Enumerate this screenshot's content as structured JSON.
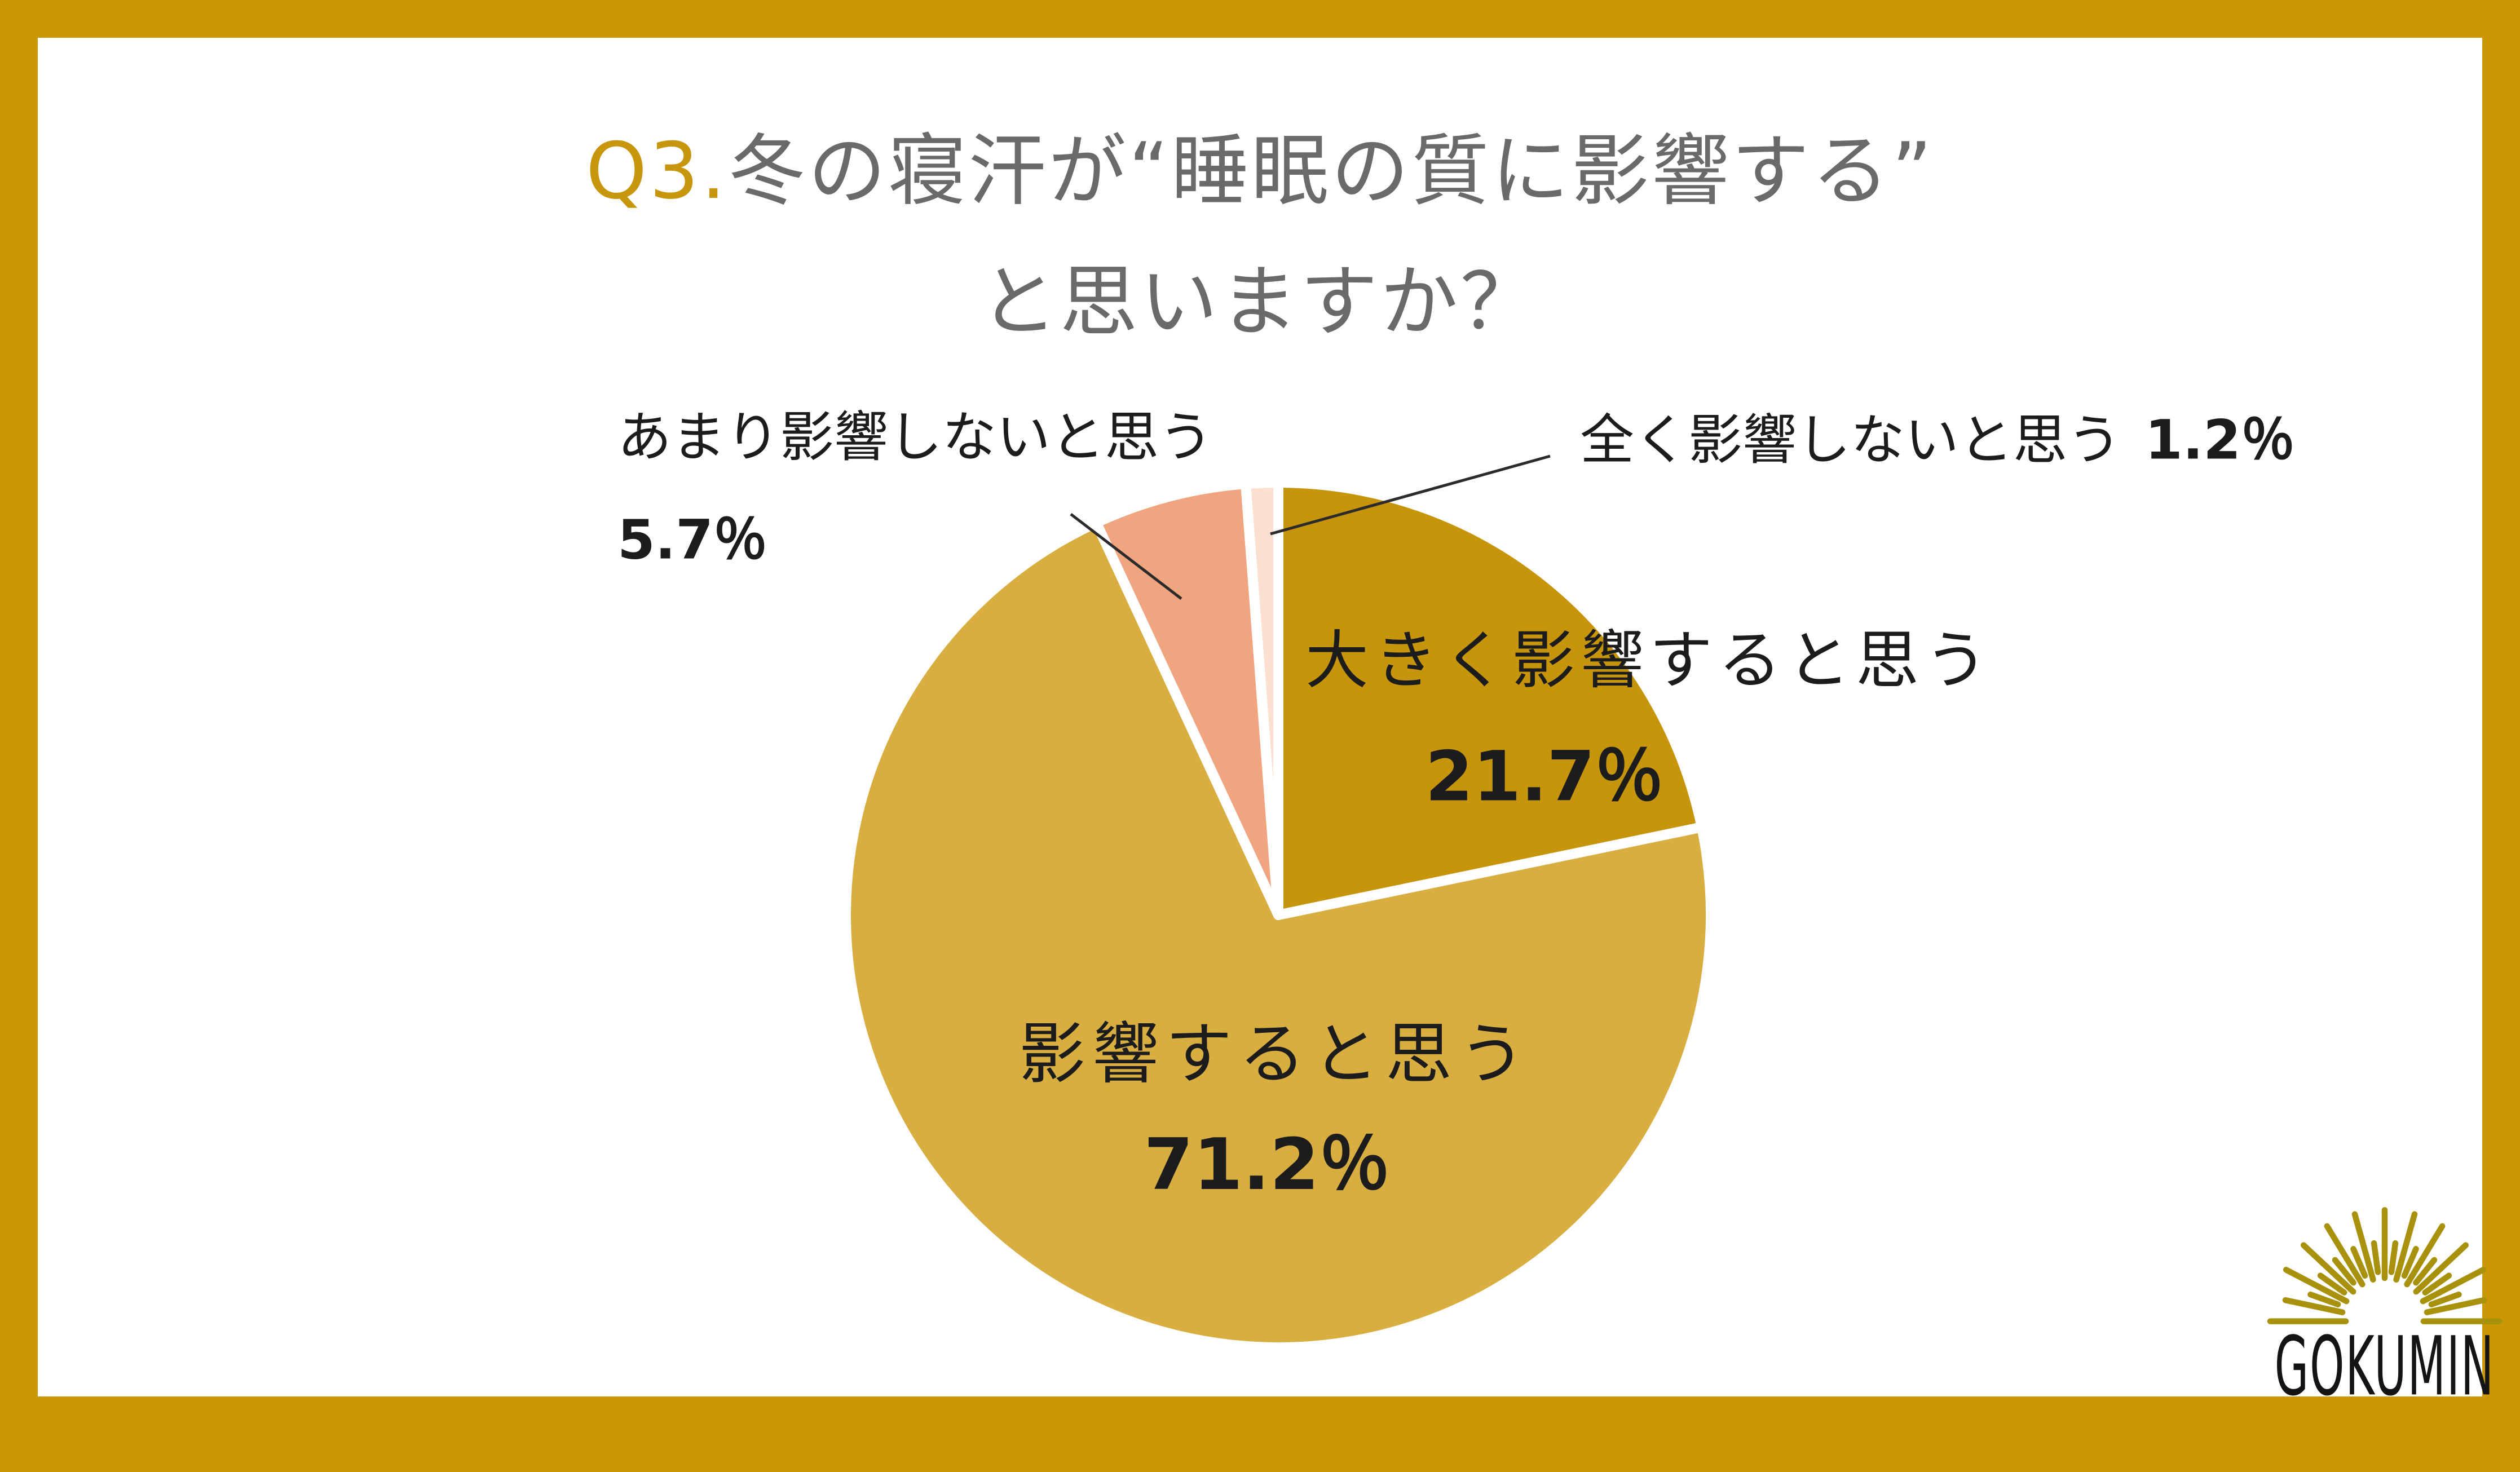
{
  "page": {
    "frame_color": "#CB9803",
    "background": "#FFFFFF"
  },
  "title": {
    "accent": "Q3.",
    "line1": "冬の寝汗が“睡眠の質に影響する”",
    "line2": "と思いますか？",
    "accent_color": "#C8960C",
    "text_color": "#6A6A6A"
  },
  "chart_data": {
    "type": "pie",
    "title": "Q3.冬の寝汗が“睡眠の質に影響する”と思いますか？",
    "start_angle_deg_from_12oclock": 0,
    "direction": "clockwise",
    "legend_position": "none",
    "grid": false,
    "categories": [
      "大きく影響すると思う",
      "影響すると思う",
      "あまり影響しないと思う",
      "全く影響しないと思う"
    ],
    "values": [
      21.7,
      71.2,
      5.7,
      1.2
    ],
    "slices": [
      {
        "label": "大きく影響すると思う",
        "value": 21.7,
        "percent_label": "21.7％",
        "color": "#C6950B",
        "label_placement": "inside"
      },
      {
        "label": "影響すると思う",
        "value": 71.2,
        "percent_label": "71.2％",
        "color": "#D8AE41",
        "label_placement": "inside"
      },
      {
        "label": "あまり影響しないと思う",
        "value": 5.7,
        "percent_label": "5.7％",
        "color": "#F0A580",
        "label_placement": "outside-left"
      },
      {
        "label": "全く影響しないと思う",
        "value": 1.2,
        "percent_label": "1.2％",
        "color": "#FBE0D1",
        "label_placement": "outside-right"
      }
    ],
    "slice_border_color": "#FFFFFF",
    "label_text_color": "#1C1C1C"
  },
  "logo": {
    "brand": "GOKUMIN",
    "icon": "sunburst",
    "icon_color": "#A8910D",
    "text_color": "#141414"
  }
}
